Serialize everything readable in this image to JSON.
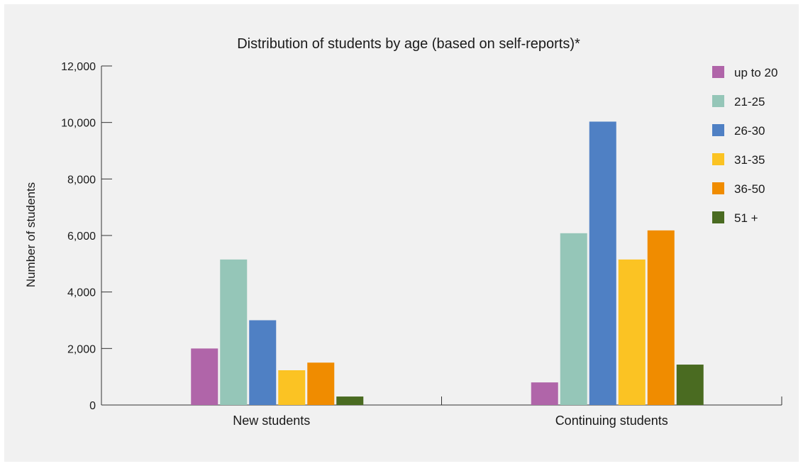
{
  "chart_data": {
    "type": "bar",
    "title": "Distribution of students by age (based on self-reports)*",
    "ylabel": "Number of students",
    "xlabel": "",
    "categories": [
      "New students",
      "Continuing students"
    ],
    "ylim": [
      0,
      12000
    ],
    "yticks": [
      0,
      2000,
      4000,
      6000,
      8000,
      10000,
      12000
    ],
    "ytick_labels": [
      "0",
      "2,000",
      "4,000",
      "6,000",
      "8,000",
      "10,000",
      "12,000"
    ],
    "grid": false,
    "legend_position": "top-right",
    "series": [
      {
        "name": "up to 20",
        "color": "#b065a9",
        "values": [
          2000,
          800
        ]
      },
      {
        "name": "21-25",
        "color": "#95c6b8",
        "values": [
          5150,
          6080
        ]
      },
      {
        "name": "26-30",
        "color": "#4f80c4",
        "values": [
          3000,
          10030
        ]
      },
      {
        "name": "31-35",
        "color": "#fbc323",
        "values": [
          1230,
          5150
        ]
      },
      {
        "name": "36-50",
        "color": "#f08c00",
        "values": [
          1500,
          6180
        ]
      },
      {
        "name": "51 +",
        "color": "#4a6b21",
        "values": [
          300,
          1430
        ]
      }
    ]
  }
}
